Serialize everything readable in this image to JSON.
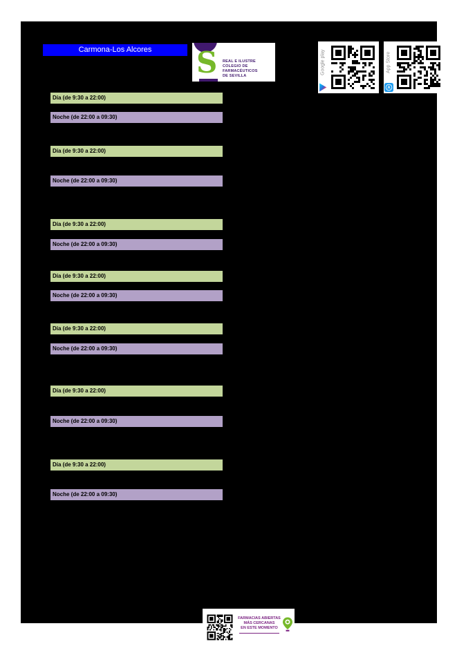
{
  "header": {
    "region_title": "Carmona-Los Alcores",
    "college_logo": {
      "initial": "S",
      "name_line1": "REAL E ILUSTRE",
      "name_line2": "COLEGIO DE FARMACÉUTICOS",
      "name_line3": "DE SEVILLA"
    },
    "store_badges": {
      "google_label": "Google play",
      "apple_label": "App Store"
    }
  },
  "schedule": {
    "day_label": "Día (de 9:30 a 22:00)",
    "night_label": "Noche (de 22:00 a 09:30)",
    "group_count": 7
  },
  "footer": {
    "caption_line1": "FARMACIAS ABIERTAS",
    "caption_line2": "MÁS CERCANAS",
    "caption_line3": "EN ESTE MOMENTO"
  },
  "colors": {
    "region_bar": "#0000ff",
    "day_bar": "#c3d69b",
    "night_bar": "#b2a1c7",
    "college_purple": "#41196e",
    "college_green": "#76b82a",
    "footer_purple": "#7b2382",
    "qr_label_gray": "#8f8f8f"
  }
}
